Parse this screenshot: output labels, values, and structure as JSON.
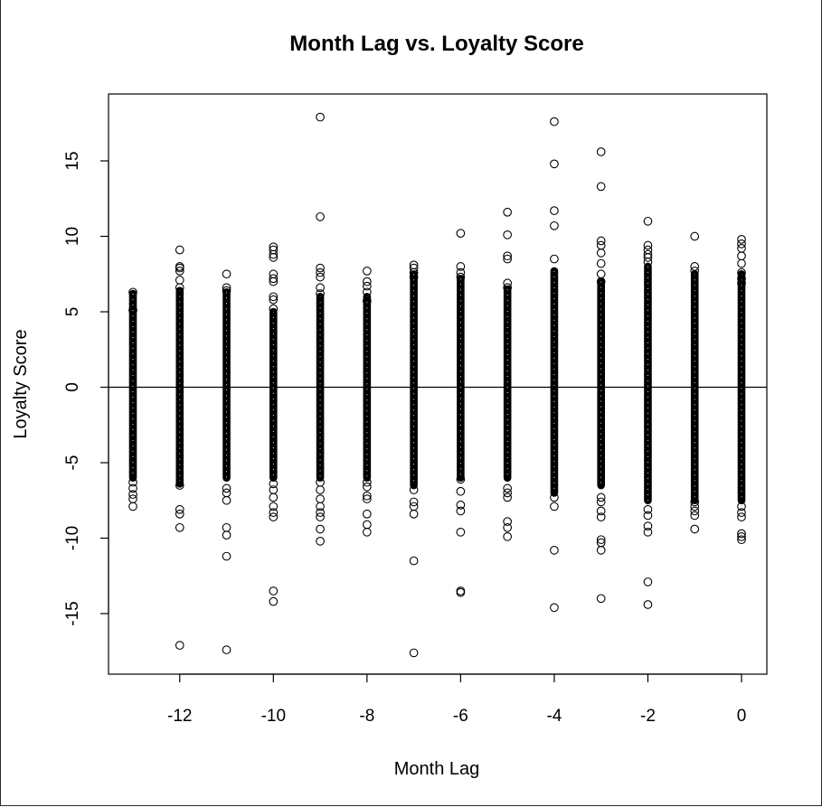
{
  "chart_data": {
    "type": "scatter",
    "title": "Month Lag vs. Loyalty Score",
    "xlabel": "Month Lag",
    "ylabel": "Loyalty Score",
    "xlim": [
      -13,
      0
    ],
    "ylim": [
      -18,
      18
    ],
    "x_ticks": [
      -12,
      -10,
      -8,
      -6,
      -4,
      -2,
      0
    ],
    "y_ticks": [
      -15,
      -10,
      -5,
      0,
      5,
      10,
      15
    ],
    "reference_line_y": 0,
    "grid": false,
    "marker": "open-circle",
    "dense_bands": [
      {
        "x": -13,
        "from": -6.0,
        "to": 6.2
      },
      {
        "x": -12,
        "from": -6.4,
        "to": 6.4
      },
      {
        "x": -11,
        "from": -6.0,
        "to": 6.3
      },
      {
        "x": -10,
        "from": -6.0,
        "to": 5.0
      },
      {
        "x": -9,
        "from": -6.0,
        "to": 6.0
      },
      {
        "x": -8,
        "from": -6.0,
        "to": 6.0
      },
      {
        "x": -7,
        "from": -6.5,
        "to": 7.5
      },
      {
        "x": -6,
        "from": -6.0,
        "to": 7.2
      },
      {
        "x": -5,
        "from": -6.0,
        "to": 6.5
      },
      {
        "x": -4,
        "from": -7.0,
        "to": 7.7
      },
      {
        "x": -3,
        "from": -6.5,
        "to": 7.0
      },
      {
        "x": -2,
        "from": -7.5,
        "to": 8.0
      },
      {
        "x": -1,
        "from": -7.5,
        "to": 7.5
      },
      {
        "x": 0,
        "from": -7.5,
        "to": 7.5
      }
    ],
    "points": [
      {
        "x": -13,
        "y": [
          6.3,
          5.1,
          -6.3,
          -6.7,
          -7.1,
          -7.4,
          -7.9
        ]
      },
      {
        "x": -12,
        "y": [
          9.1,
          8.0,
          7.9,
          7.7,
          7.1,
          6.6,
          -6.5,
          -8.1,
          -8.4,
          -9.3,
          -17.1
        ]
      },
      {
        "x": -11,
        "y": [
          7.5,
          6.6,
          6.4,
          -6.7,
          -7.0,
          -7.5,
          -9.3,
          -9.8,
          -11.2,
          -17.4
        ]
      },
      {
        "x": -10,
        "y": [
          9.3,
          9.1,
          8.8,
          8.6,
          7.5,
          7.2,
          7.0,
          6.0,
          5.8,
          5.2,
          -6.4,
          -6.8,
          -7.3,
          -7.9,
          -8.3,
          -8.6,
          -13.5,
          -14.2
        ]
      },
      {
        "x": -9,
        "y": [
          17.9,
          11.3,
          7.9,
          7.6,
          7.3,
          6.6,
          6.2,
          -6.3,
          -6.8,
          -7.4,
          -7.9,
          -8.3,
          -8.6,
          -9.4,
          -10.2
        ]
      },
      {
        "x": -8,
        "y": [
          7.7,
          7.0,
          6.7,
          6.3,
          5.7,
          -6.3,
          -6.6,
          -7.2,
          -7.4,
          -8.4,
          -9.1,
          -9.6
        ]
      },
      {
        "x": -7,
        "y": [
          8.1,
          7.9,
          7.6,
          7.3,
          -6.8,
          -7.6,
          -7.9,
          -8.4,
          -11.5,
          -17.6
        ]
      },
      {
        "x": -6,
        "y": [
          10.2,
          8.0,
          7.6,
          7.3,
          -6.1,
          -6.9,
          -7.8,
          -8.2,
          -9.6,
          -13.5,
          -13.6
        ]
      },
      {
        "x": -5,
        "y": [
          11.6,
          10.1,
          8.7,
          8.5,
          6.9,
          6.6,
          -6.7,
          -7.0,
          -7.3,
          -8.9,
          -9.3,
          -9.9
        ]
      },
      {
        "x": -4,
        "y": [
          17.6,
          14.8,
          11.7,
          10.7,
          8.5,
          -7.3,
          -7.9,
          -10.8,
          -14.6
        ]
      },
      {
        "x": -3,
        "y": [
          15.6,
          13.3,
          9.7,
          9.4,
          8.9,
          8.2,
          7.5,
          7.0,
          -7.3,
          -7.6,
          -8.2,
          -8.6,
          -10.1,
          -10.3,
          -10.8,
          -14.0
        ]
      },
      {
        "x": -2,
        "y": [
          11.0,
          9.4,
          9.1,
          8.8,
          8.6,
          8.3,
          -8.1,
          -8.5,
          -9.2,
          -9.6,
          -12.9,
          -14.4
        ]
      },
      {
        "x": -1,
        "y": [
          10.0,
          8.0,
          7.7,
          -7.6,
          -7.9,
          -8.2,
          -8.5,
          -9.4
        ]
      },
      {
        "x": 0,
        "y": [
          9.8,
          9.5,
          9.2,
          8.7,
          8.2,
          7.6,
          7.2,
          6.9,
          -7.9,
          -8.3,
          -8.6,
          -9.7,
          -9.9,
          -10.1
        ]
      }
    ]
  }
}
